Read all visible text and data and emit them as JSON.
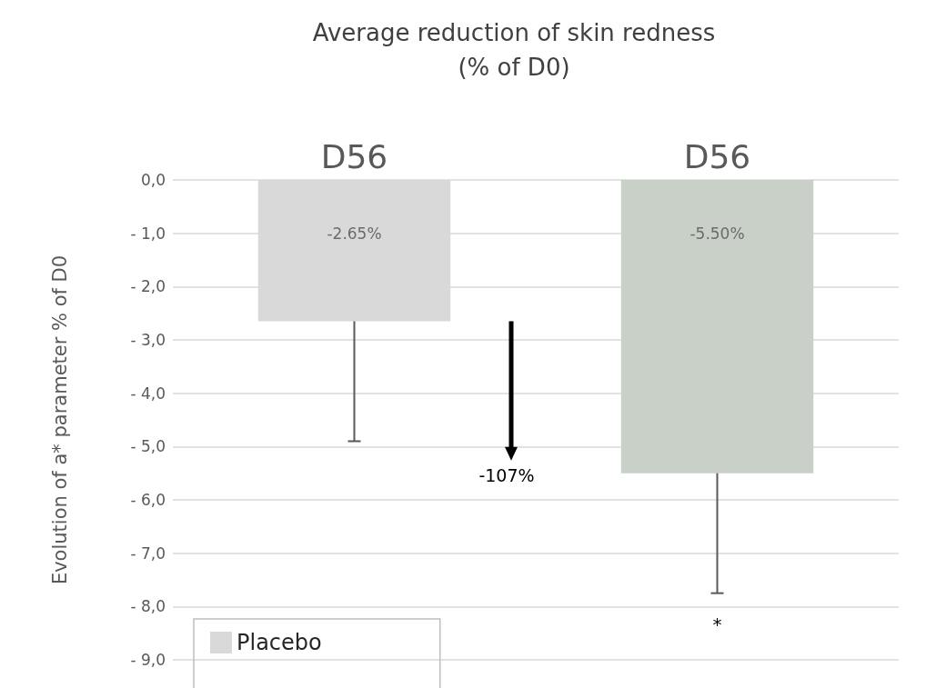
{
  "chart_data": {
    "type": "bar",
    "title": "Average reduction of skin redness\n(% of D0)",
    "ylabel": "Evolution of a* parameter % of D0",
    "categories": [
      "D56",
      "D56"
    ],
    "series": [
      {
        "name": "Placebo",
        "color": "#d9d9d9",
        "values": [
          -2.65,
          null
        ],
        "errors": [
          [
            -4.9,
            -2.65
          ],
          null
        ],
        "value_labels": [
          "-2.65%",
          null
        ]
      },
      {
        "color": "#c9d0c8",
        "values": [
          null,
          -5.5
        ],
        "errors": [
          null,
          [
            -7.75,
            -5.5
          ]
        ],
        "value_labels": [
          null,
          "-5.50%"
        ]
      }
    ],
    "ylim": [
      -9,
      0
    ],
    "yticks": [
      {
        "value": 0,
        "label": "0,0"
      },
      {
        "value": -1,
        "label": "- 1,0"
      },
      {
        "value": -2,
        "label": "- 2,0"
      },
      {
        "value": -3,
        "label": "- 3,0"
      },
      {
        "value": -4,
        "label": "- 4,0"
      },
      {
        "value": -5,
        "label": "- 5,0"
      },
      {
        "value": -6,
        "label": "- 6,0"
      },
      {
        "value": -7,
        "label": "- 7,0"
      },
      {
        "value": -8,
        "label": "- 8,0"
      },
      {
        "value": -9,
        "label": "- 9,0"
      }
    ],
    "annotations": [
      "-107%",
      "*"
    ],
    "grid": "y",
    "legend": "bottom left"
  }
}
